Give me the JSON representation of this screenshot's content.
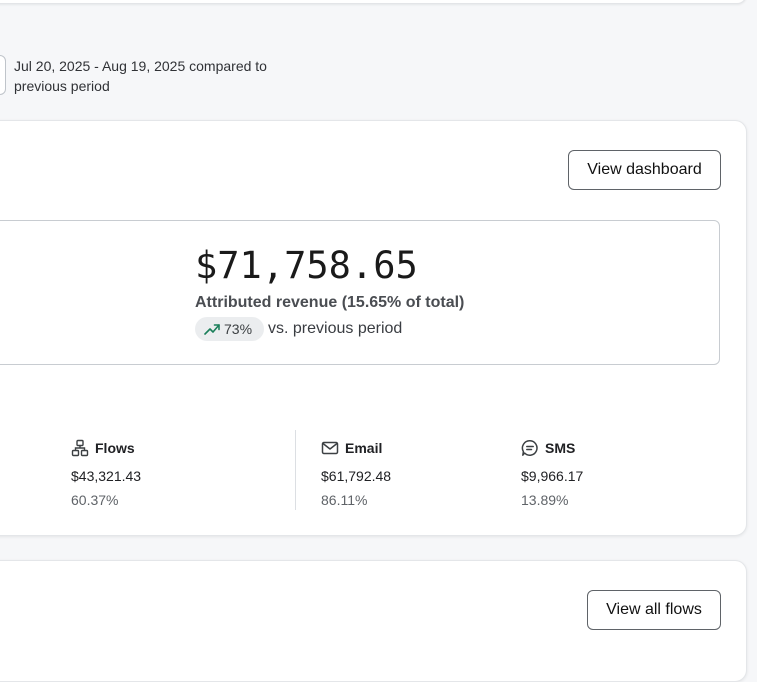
{
  "date_range": {
    "text": "Jul 20, 2025 - Aug 19, 2025 compared to previous period"
  },
  "overview": {
    "view_dashboard_label": "View dashboard",
    "revenue_amount": "$71,758.65",
    "revenue_label": "Attributed revenue (15.65% of total)",
    "trend_value": "73%",
    "trend_suffix": "vs. previous period",
    "trend_direction": "up",
    "trend_color": "#1a7f5a"
  },
  "channels": [
    {
      "icon": "flows-icon",
      "title": "Flows",
      "amount": "$43,321.43",
      "percent": "60.37%"
    },
    {
      "icon": "email-icon",
      "title": "Email",
      "amount": "$61,792.48",
      "percent": "86.11%"
    },
    {
      "icon": "sms-icon",
      "title": "SMS",
      "amount": "$9,966.17",
      "percent": "13.89%"
    }
  ],
  "flows_section": {
    "view_all_label": "View all flows"
  }
}
